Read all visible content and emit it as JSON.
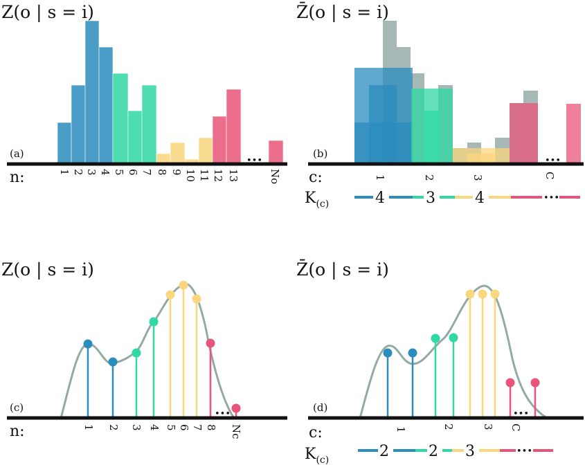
{
  "colors": {
    "blue": "#2b8cbe",
    "green": "#2fd8a4",
    "yellow": "#fad67e",
    "pink": "#e9557a",
    "gray": "#7f9a96",
    "curve": "#93aaa4",
    "axis": "#111111"
  },
  "panel_a": {
    "title": "Z(o | s = i)",
    "label": "(a)",
    "axis_label": "n:",
    "ticks": [
      "1",
      "2",
      "3",
      "4",
      "5",
      "6",
      "7",
      "8",
      "9",
      "10",
      "11",
      "12",
      "13"
    ],
    "last_tick": "No",
    "ellipsis": "•••"
  },
  "panel_b": {
    "title": "Z̄(o | s = i)",
    "label": "(b)",
    "axis_label": "c:",
    "ticks": [
      "1",
      "2",
      "3",
      "C"
    ],
    "k_label": "K",
    "k_sub": "(c)",
    "k_values": [
      "4",
      "3",
      "4"
    ],
    "ellipsis": "•••"
  },
  "panel_c": {
    "title": "Z(o | s = i)",
    "label": "(c)",
    "axis_label": "n:",
    "ticks": [
      "1",
      "2",
      "3",
      "4",
      "5",
      "6",
      "7",
      "8"
    ],
    "last_tick": "Nc",
    "ellipsis": "•••"
  },
  "panel_d": {
    "title": "Z̄(o | s = i)",
    "label": "(d)",
    "axis_label": "c:",
    "ticks": [
      "1",
      "2",
      "3",
      "C"
    ],
    "k_label": "K",
    "k_sub": "(c)",
    "k_values": [
      "2",
      "2",
      "3"
    ],
    "ellipsis": "•••"
  }
}
